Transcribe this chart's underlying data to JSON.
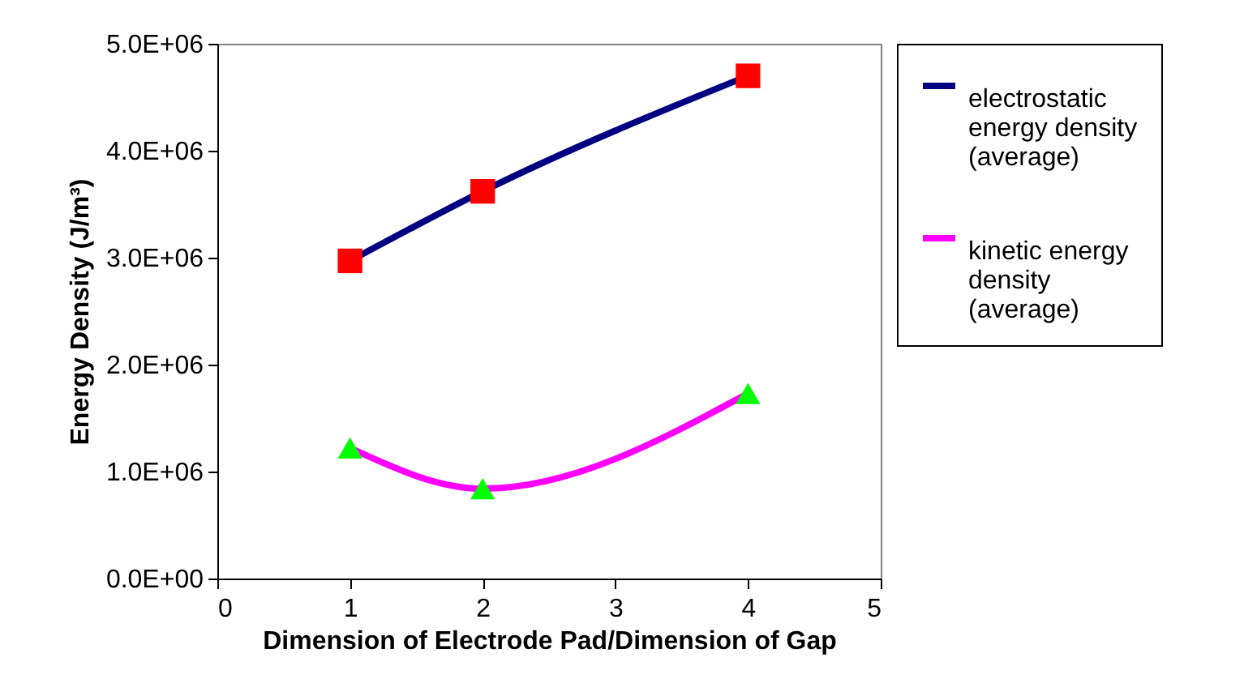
{
  "chart_data": {
    "type": "line",
    "xlabel": "Dimension of Electrode Pad/Dimension of Gap",
    "ylabel": "Energy Density (J/m³)",
    "xlim": [
      0,
      5
    ],
    "xticks": [
      0,
      1,
      2,
      3,
      4,
      5
    ],
    "ylim": [
      0,
      5000000
    ],
    "yticks": [
      {
        "value": 0,
        "label": "0.0E+00"
      },
      {
        "value": 1000000,
        "label": "1.0E+06"
      },
      {
        "value": 2000000,
        "label": "2.0E+06"
      },
      {
        "value": 3000000,
        "label": "3.0E+06"
      },
      {
        "value": 4000000,
        "label": "4.0E+06"
      },
      {
        "value": 5000000,
        "label": "5.0E+06"
      }
    ],
    "x": [
      1,
      2,
      4
    ],
    "grid": false,
    "legend": "right",
    "series": [
      {
        "name": "electrostatic energy density (average)",
        "type": "line",
        "marker": "none",
        "color": "#000080",
        "values": [
          2970000,
          3620000,
          4700000
        ]
      },
      {
        "type": "scatter",
        "marker": "square",
        "color": "#ff0000",
        "values": [
          2970000,
          3620000,
          4700000
        ]
      },
      {
        "name": "kinetic energy density (average)",
        "type": "line",
        "marker": "none",
        "color": "#ff00ff",
        "values": [
          1220000,
          840000,
          1730000
        ]
      },
      {
        "type": "scatter",
        "marker": "triangle",
        "color": "#00ff00",
        "values": [
          1220000,
          840000,
          1730000
        ]
      }
    ]
  }
}
